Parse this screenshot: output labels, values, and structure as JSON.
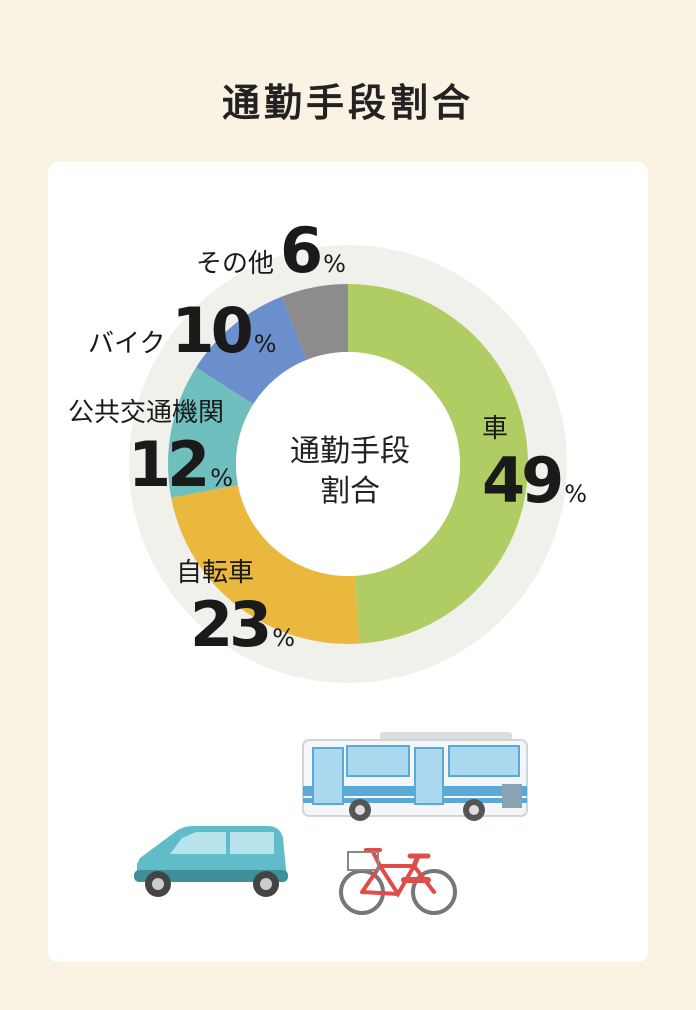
{
  "title": "通勤手段割合",
  "chart_data": {
    "type": "pie",
    "center_label_line1": "通勤手段",
    "center_label_line2": "割合",
    "unit": "%",
    "slices": [
      {
        "name": "車",
        "value": 49,
        "color": "#b0cd64"
      },
      {
        "name": "自転車",
        "value": 23,
        "color": "#ebb83e"
      },
      {
        "name": "公共交通機関",
        "value": 12,
        "color": "#6fbfbf"
      },
      {
        "name": "バイク",
        "value": 10,
        "color": "#6b8fcd"
      },
      {
        "name": "その他",
        "value": 6,
        "color": "#8c8c8c"
      }
    ]
  },
  "illustrations": {
    "bus": "bus-illustration",
    "car": "car-illustration",
    "bicycle": "bicycle-illustration"
  },
  "colors": {
    "background": "#faf3e3",
    "card": "#ffffff",
    "outer_ring": "#f1f1ec"
  }
}
